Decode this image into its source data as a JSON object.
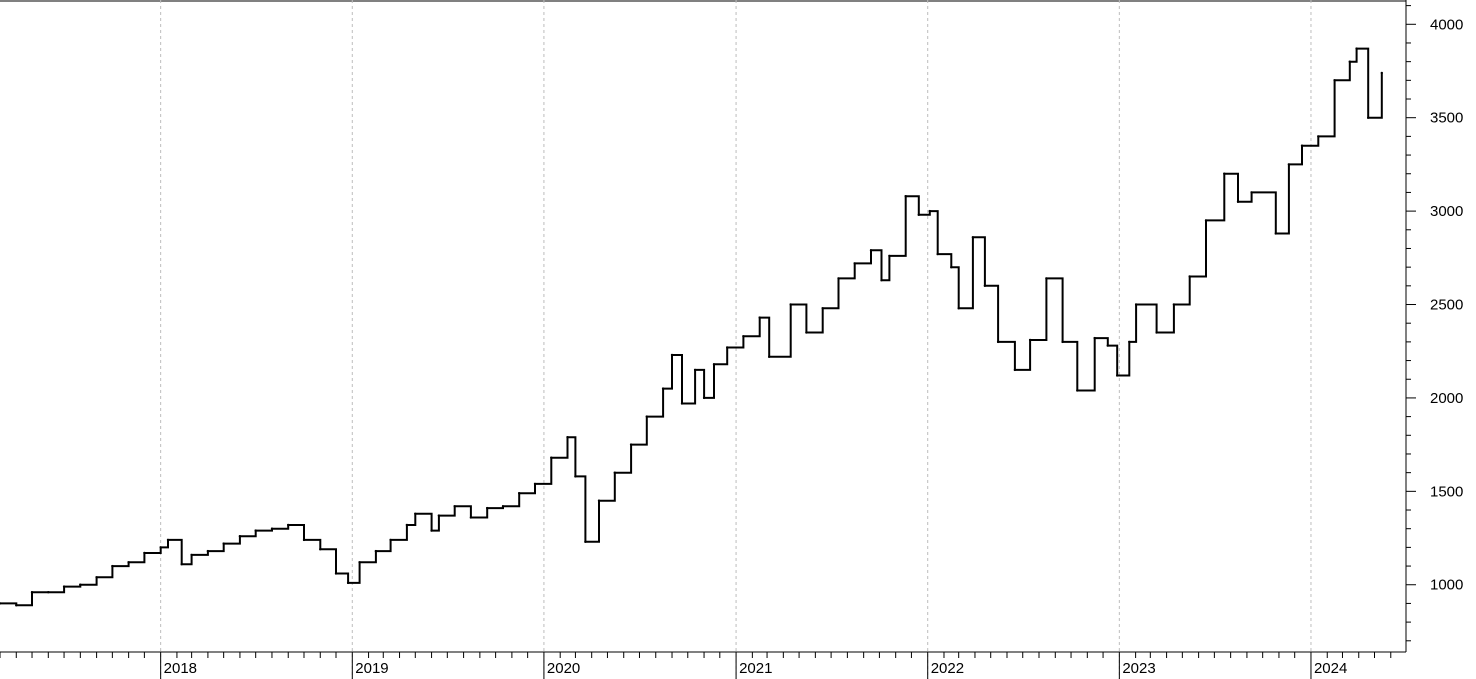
{
  "chart_data": {
    "type": "line",
    "title": "",
    "xlabel": "",
    "ylabel": "",
    "x_tick_labels": [
      "2018",
      "2019",
      "2020",
      "2021",
      "2022",
      "2023",
      "2024"
    ],
    "y_tick_labels": [
      "1000",
      "1500",
      "2000",
      "2500",
      "3000",
      "3500",
      "4000"
    ],
    "y_ticks": [
      1000,
      1500,
      2000,
      2500,
      3000,
      3500,
      4000
    ],
    "ylim": [
      640,
      4130
    ],
    "xlim": [
      "2017-03-01",
      "2024-06-30"
    ],
    "grid": "vertical dashed at year starts",
    "legend": "none",
    "line_color": "#000000",
    "series": [
      {
        "points": [
          [
            "2017-03-01",
            900
          ],
          [
            "2017-04-01",
            890
          ],
          [
            "2017-05-01",
            960
          ],
          [
            "2017-06-01",
            960
          ],
          [
            "2017-07-01",
            990
          ],
          [
            "2017-08-01",
            1000
          ],
          [
            "2017-09-01",
            1040
          ],
          [
            "2017-10-01",
            1100
          ],
          [
            "2017-11-01",
            1120
          ],
          [
            "2017-12-01",
            1170
          ],
          [
            "2018-01-01",
            1200
          ],
          [
            "2018-01-15",
            1240
          ],
          [
            "2018-02-10",
            1110
          ],
          [
            "2018-03-01",
            1160
          ],
          [
            "2018-04-01",
            1180
          ],
          [
            "2018-05-01",
            1220
          ],
          [
            "2018-06-01",
            1260
          ],
          [
            "2018-07-01",
            1290
          ],
          [
            "2018-08-01",
            1300
          ],
          [
            "2018-09-01",
            1320
          ],
          [
            "2018-10-01",
            1240
          ],
          [
            "2018-11-01",
            1190
          ],
          [
            "2018-12-01",
            1060
          ],
          [
            "2018-12-24",
            1010
          ],
          [
            "2019-01-15",
            1120
          ],
          [
            "2019-02-15",
            1180
          ],
          [
            "2019-03-15",
            1240
          ],
          [
            "2019-04-15",
            1320
          ],
          [
            "2019-05-01",
            1380
          ],
          [
            "2019-06-01",
            1290
          ],
          [
            "2019-06-15",
            1370
          ],
          [
            "2019-07-15",
            1420
          ],
          [
            "2019-08-15",
            1360
          ],
          [
            "2019-09-15",
            1410
          ],
          [
            "2019-10-15",
            1420
          ],
          [
            "2019-11-15",
            1490
          ],
          [
            "2019-12-15",
            1540
          ],
          [
            "2020-01-15",
            1680
          ],
          [
            "2020-02-15",
            1790
          ],
          [
            "2020-03-01",
            1580
          ],
          [
            "2020-03-20",
            1230
          ],
          [
            "2020-04-15",
            1450
          ],
          [
            "2020-05-15",
            1600
          ],
          [
            "2020-06-15",
            1750
          ],
          [
            "2020-07-15",
            1900
          ],
          [
            "2020-08-15",
            2050
          ],
          [
            "2020-09-01",
            2230
          ],
          [
            "2020-09-20",
            1970
          ],
          [
            "2020-10-15",
            2150
          ],
          [
            "2020-11-01",
            2000
          ],
          [
            "2020-11-20",
            2180
          ],
          [
            "2020-12-15",
            2270
          ],
          [
            "2021-01-15",
            2330
          ],
          [
            "2021-02-15",
            2430
          ],
          [
            "2021-03-05",
            2220
          ],
          [
            "2021-04-15",
            2500
          ],
          [
            "2021-05-15",
            2350
          ],
          [
            "2021-06-15",
            2480
          ],
          [
            "2021-07-15",
            2640
          ],
          [
            "2021-08-15",
            2720
          ],
          [
            "2021-09-15",
            2790
          ],
          [
            "2021-10-05",
            2630
          ],
          [
            "2021-10-20",
            2760
          ],
          [
            "2021-11-20",
            3080
          ],
          [
            "2021-12-15",
            2980
          ],
          [
            "2022-01-05",
            3000
          ],
          [
            "2022-01-20",
            2770
          ],
          [
            "2022-02-15",
            2700
          ],
          [
            "2022-03-01",
            2480
          ],
          [
            "2022-03-28",
            2860
          ],
          [
            "2022-04-20",
            2600
          ],
          [
            "2022-05-15",
            2300
          ],
          [
            "2022-06-16",
            2150
          ],
          [
            "2022-07-15",
            2310
          ],
          [
            "2022-08-15",
            2640
          ],
          [
            "2022-09-15",
            2300
          ],
          [
            "2022-10-13",
            2040
          ],
          [
            "2022-11-15",
            2320
          ],
          [
            "2022-12-10",
            2280
          ],
          [
            "2022-12-28",
            2120
          ],
          [
            "2023-01-20",
            2300
          ],
          [
            "2023-02-02",
            2500
          ],
          [
            "2023-03-13",
            2350
          ],
          [
            "2023-04-15",
            2500
          ],
          [
            "2023-05-15",
            2650
          ],
          [
            "2023-06-15",
            2950
          ],
          [
            "2023-07-20",
            3200
          ],
          [
            "2023-08-15",
            3050
          ],
          [
            "2023-09-10",
            3100
          ],
          [
            "2023-10-26",
            2880
          ],
          [
            "2023-11-20",
            3250
          ],
          [
            "2023-12-15",
            3350
          ],
          [
            "2024-01-15",
            3400
          ],
          [
            "2024-02-15",
            3700
          ],
          [
            "2024-03-15",
            3800
          ],
          [
            "2024-03-28",
            3870
          ],
          [
            "2024-04-19",
            3500
          ],
          [
            "2024-05-15",
            3740
          ]
        ]
      }
    ]
  }
}
